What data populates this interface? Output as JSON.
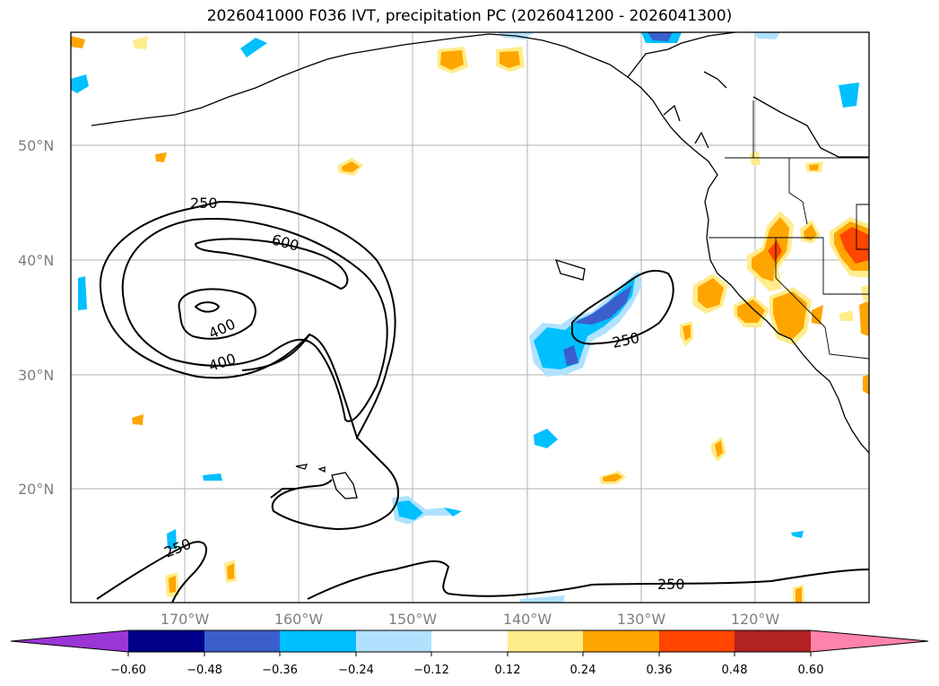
{
  "title": "2026041000 F036 IVT, precipitation PC (2026041200 - 2026041300)",
  "map": {
    "lat_labels": [
      "50°N",
      "40°N",
      "30°N",
      "20°N"
    ],
    "lon_labels": [
      "170°W",
      "160°W",
      "150°W",
      "140°W",
      "130°W",
      "120°W"
    ],
    "ivt_contour_labels": [
      "250",
      "600",
      "400",
      "400",
      "250",
      "250",
      "250"
    ]
  },
  "colorbar": {
    "colors": [
      "#9a35d6",
      "#00008b",
      "#3a5fcd",
      "#00bfff",
      "#b0e2ff",
      "#ffffff",
      "#ffec8b",
      "#ffa500",
      "#ff4500",
      "#b22222",
      "#ff82ab"
    ],
    "ticks": [
      "−0.60",
      "−0.48",
      "−0.36",
      "−0.24",
      "−0.12",
      "0.12",
      "0.24",
      "0.36",
      "0.48",
      "0.60"
    ]
  }
}
